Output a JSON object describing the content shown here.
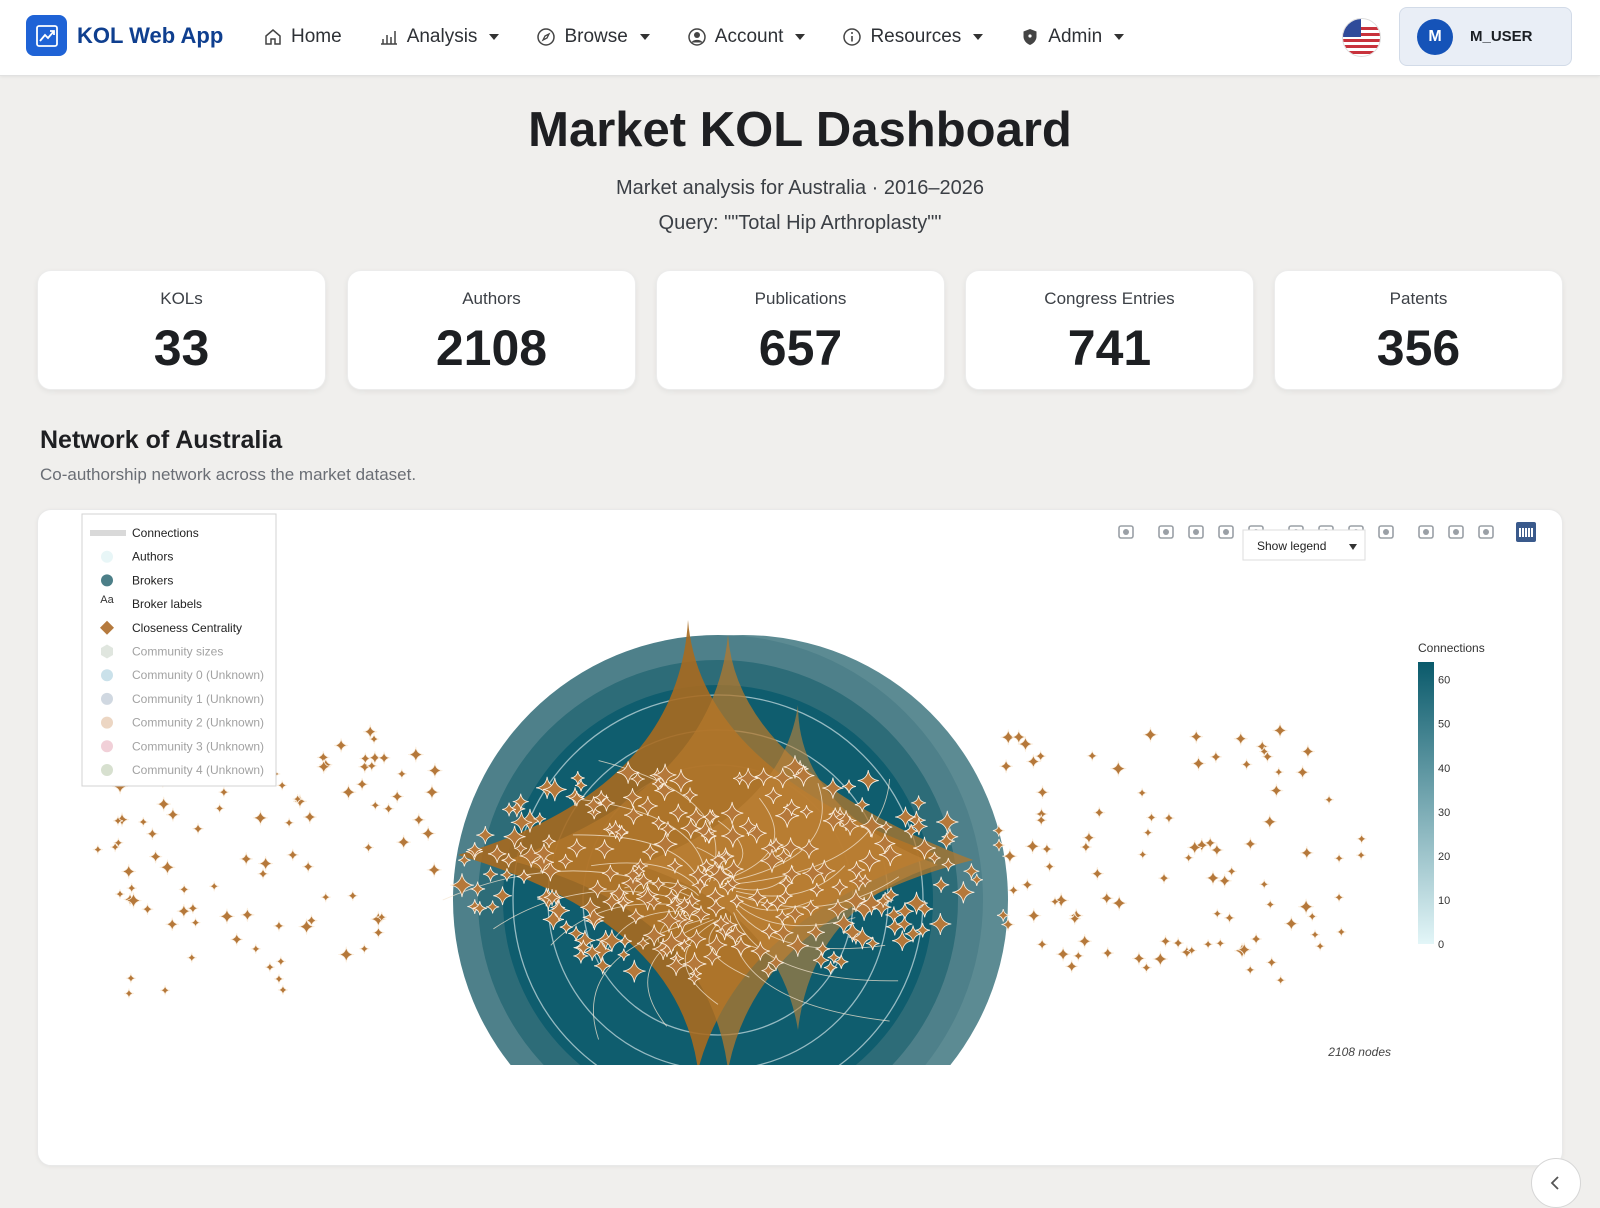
{
  "app": {
    "name": "KOL Web App"
  },
  "nav": {
    "items": [
      {
        "label": "Home",
        "icon": "home-icon",
        "dropdown": false
      },
      {
        "label": "Analysis",
        "icon": "bar-chart-icon",
        "dropdown": true
      },
      {
        "label": "Browse",
        "icon": "compass-icon",
        "dropdown": true
      },
      {
        "label": "Account",
        "icon": "user-circle-icon",
        "dropdown": true
      },
      {
        "label": "Resources",
        "icon": "info-icon",
        "dropdown": true
      },
      {
        "label": "Admin",
        "icon": "shield-icon",
        "dropdown": true
      }
    ],
    "language_flag": "us-flag-icon",
    "user": {
      "initial": "M",
      "name": "M_USER"
    }
  },
  "header": {
    "title": "Market KOL Dashboard",
    "subtitle": "Market analysis for Australia · 2016–2026",
    "query": "Query: \"\"Total Hip Arthroplasty\"\""
  },
  "stats": [
    {
      "label": "KOLs",
      "value": "33"
    },
    {
      "label": "Authors",
      "value": "2108"
    },
    {
      "label": "Publications",
      "value": "657"
    },
    {
      "label": "Congress Entries",
      "value": "741"
    },
    {
      "label": "Patents",
      "value": "356"
    }
  ],
  "network": {
    "title": "Network of Australia",
    "subtitle": "Co-authorship network across the market dataset."
  },
  "chart_data": {
    "type": "scatter",
    "legend": [
      {
        "label": "Connections",
        "symbol": "line",
        "color": "#d9d9d9",
        "muted": false
      },
      {
        "label": "Authors",
        "symbol": "circle",
        "color": "#e8f6f7",
        "muted": false
      },
      {
        "label": "Brokers",
        "symbol": "circle",
        "color": "#4c7f88",
        "muted": false
      },
      {
        "label": "Broker labels",
        "symbol": "text",
        "color": "#333333",
        "muted": false
      },
      {
        "label": "Closeness Centrality",
        "symbol": "diamond",
        "color": "#b57a3e",
        "muted": false
      },
      {
        "label": "Community sizes",
        "symbol": "hexagon",
        "color": "#c7d2c5",
        "muted": true
      },
      {
        "label": "Community 0 (Unknown)",
        "symbol": "circle",
        "color": "#9fc9d9",
        "muted": true
      },
      {
        "label": "Community 1 (Unknown)",
        "symbol": "circle",
        "color": "#a9b8c8",
        "muted": true
      },
      {
        "label": "Community 2 (Unknown)",
        "symbol": "circle",
        "color": "#dcb592",
        "muted": true
      },
      {
        "label": "Community 3 (Unknown)",
        "symbol": "circle",
        "color": "#e6aab8",
        "muted": true
      },
      {
        "label": "Community 4 (Unknown)",
        "symbol": "circle",
        "color": "#b7c7a8",
        "muted": true
      }
    ],
    "legend_symbol_text": "Aa",
    "legend_dropdown": "Show legend",
    "colorbar": {
      "title": "Connections",
      "ticks": [
        60,
        50,
        40,
        30,
        20,
        10,
        0
      ],
      "min": 0,
      "max": 64,
      "colors": [
        "#e3f6f8",
        "#0a5a6b"
      ]
    },
    "annotation": "2108 nodes",
    "marker_color": "#b5783a",
    "toolbar": [
      "camera-icon",
      "zoom-icon",
      "pan-icon",
      "box-select-icon",
      "lasso-icon",
      "zoom-in-icon",
      "zoom-out-icon",
      "autoscale-icon",
      "reset-axes-icon",
      "spike-lines-icon",
      "hover-closest-icon",
      "hover-compare-icon",
      "plotly-logo-icon"
    ]
  }
}
